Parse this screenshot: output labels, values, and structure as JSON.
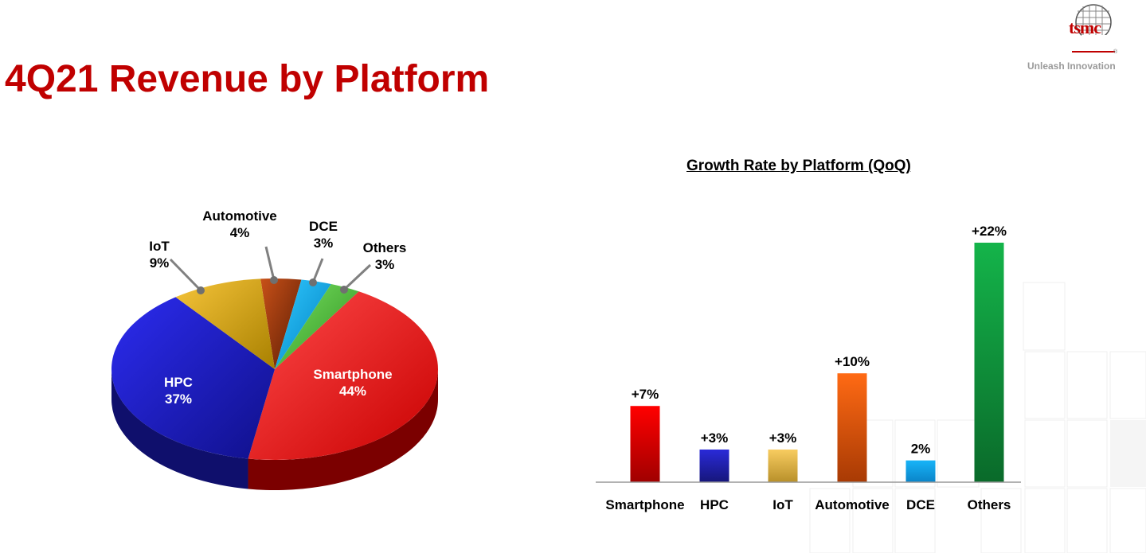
{
  "page": {
    "title": "4Q21 Revenue by Platform"
  },
  "logo": {
    "wordmark": "tsmc",
    "tagline": "Unleash Innovation",
    "registered": "®"
  },
  "colors": {
    "title": "#c00000"
  },
  "chart_data": [
    {
      "type": "pie",
      "title": "",
      "slices": [
        {
          "name": "Smartphone",
          "value": 44,
          "label": "44%",
          "color": "#e00000"
        },
        {
          "name": "HPC",
          "value": 37,
          "label": "37%",
          "color": "#1c1cc4"
        },
        {
          "name": "IoT",
          "value": 9,
          "label": "9%",
          "color": "#e4ae00"
        },
        {
          "name": "Automotive",
          "value": 4,
          "label": "4%",
          "color": "#8a2e08"
        },
        {
          "name": "DCE",
          "value": 3,
          "label": "3%",
          "color": "#0aa8ea"
        },
        {
          "name": "Others",
          "value": 3,
          "label": "3%",
          "color": "#4cbf3c"
        }
      ]
    },
    {
      "type": "bar",
      "title": "Growth Rate by Platform (QoQ)",
      "xlabel": "",
      "ylabel": "",
      "categories": [
        "Smartphone",
        "HPC",
        "IoT",
        "Automotive",
        "DCE",
        "Others"
      ],
      "values": [
        7,
        3,
        3,
        10,
        2,
        22
      ],
      "labels": [
        "+7%",
        "+3%",
        "+3%",
        "+10%",
        "2%",
        "+22%"
      ],
      "colors": [
        "#e00000",
        "#1c1cc4",
        "#f0c050",
        "#f06010",
        "#10a8f0",
        "#10a040"
      ],
      "ylim": [
        0,
        22
      ]
    }
  ]
}
